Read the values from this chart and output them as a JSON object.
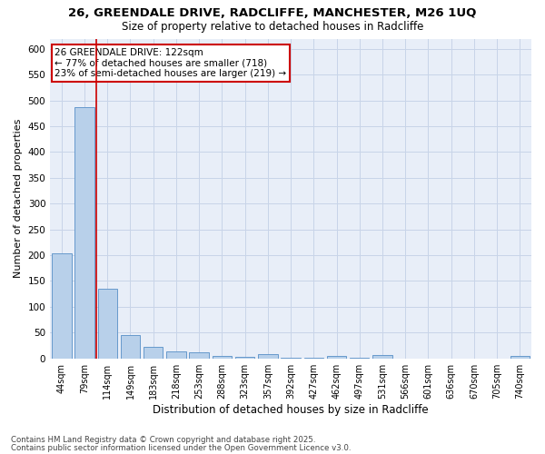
{
  "title1": "26, GREENDALE DRIVE, RADCLIFFE, MANCHESTER, M26 1UQ",
  "title2": "Size of property relative to detached houses in Radcliffe",
  "xlabel": "Distribution of detached houses by size in Radcliffe",
  "ylabel": "Number of detached properties",
  "bar_categories": [
    "44sqm",
    "79sqm",
    "114sqm",
    "149sqm",
    "183sqm",
    "218sqm",
    "253sqm",
    "288sqm",
    "323sqm",
    "357sqm",
    "392sqm",
    "427sqm",
    "462sqm",
    "497sqm",
    "531sqm",
    "566sqm",
    "601sqm",
    "636sqm",
    "670sqm",
    "705sqm",
    "740sqm"
  ],
  "bar_values": [
    203,
    487,
    135,
    46,
    22,
    13,
    12,
    5,
    3,
    9,
    2,
    1,
    5,
    1,
    7,
    0,
    0,
    0,
    0,
    0,
    5
  ],
  "bar_color": "#b8d0ea",
  "bar_edge_color": "#6699cc",
  "grid_color": "#c8d4e8",
  "background_color": "#e8eef8",
  "annotation_box_color": "#cc0000",
  "annotation_text": "26 GREENDALE DRIVE: 122sqm\n← 77% of detached houses are smaller (718)\n23% of semi-detached houses are larger (219) →",
  "red_line_x": 1.5,
  "ylim": [
    0,
    620
  ],
  "yticks": [
    0,
    50,
    100,
    150,
    200,
    250,
    300,
    350,
    400,
    450,
    500,
    550,
    600
  ],
  "footnote1": "Contains HM Land Registry data © Crown copyright and database right 2025.",
  "footnote2": "Contains public sector information licensed under the Open Government Licence v3.0."
}
